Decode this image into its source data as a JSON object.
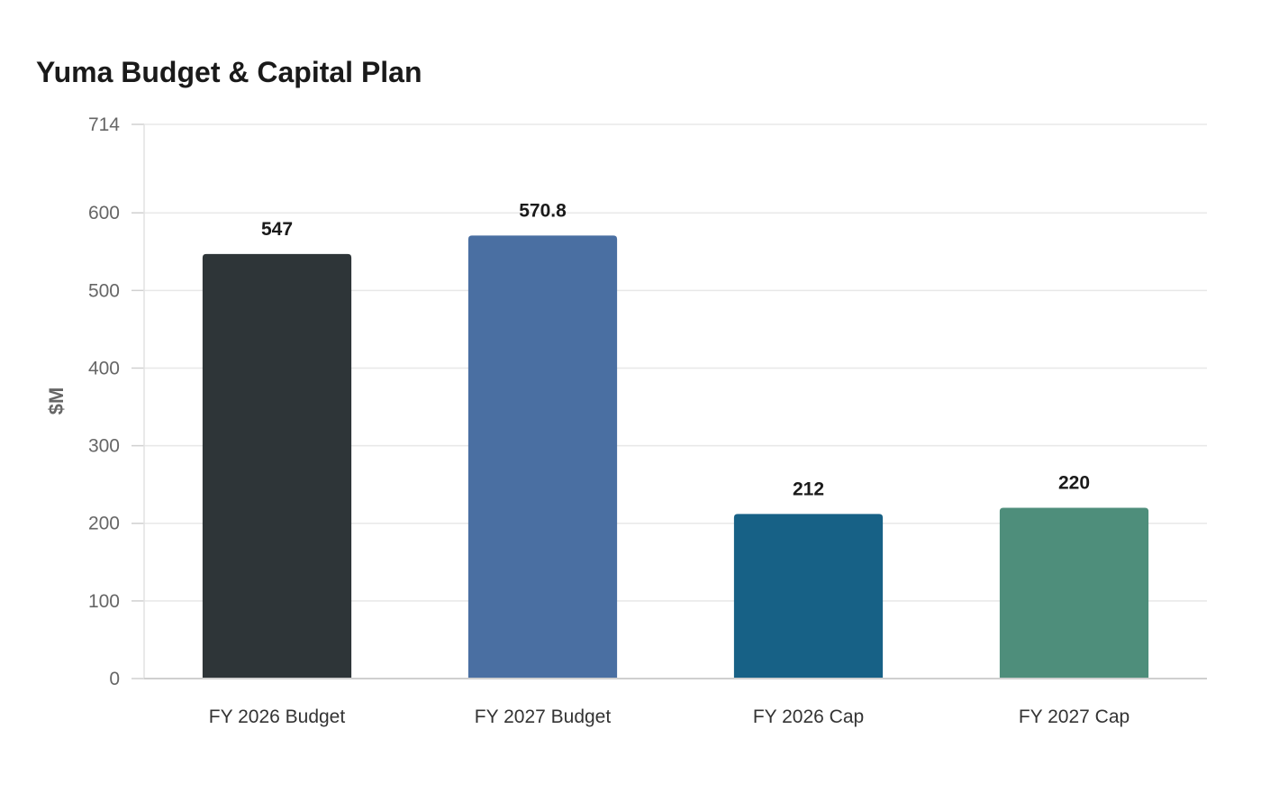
{
  "chart_data": {
    "type": "bar",
    "title": "Yuma Budget & Capital Plan",
    "xlabel": "",
    "ylabel": "$M",
    "categories": [
      "FY 2026 Budget",
      "FY 2027 Budget",
      "FY 2026 Cap",
      "FY 2027 Cap"
    ],
    "values": [
      547,
      570.8,
      212,
      220
    ],
    "value_labels": [
      "547",
      "570.8",
      "212",
      "220"
    ],
    "colors": [
      "#2e3538",
      "#4a6fa2",
      "#176186",
      "#4e8e7b"
    ],
    "ylim": [
      0,
      714
    ],
    "yticks": [
      0,
      100,
      200,
      300,
      400,
      500,
      600,
      714
    ],
    "grid": true,
    "legend": "none"
  }
}
